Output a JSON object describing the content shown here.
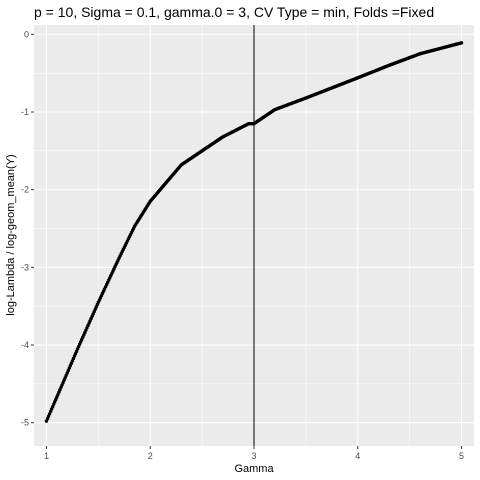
{
  "chart_data": {
    "type": "scatter",
    "title": "p = 10, Sigma = 0.1, gamma.0 = 3, CV Type = min, Folds =Fixed",
    "xlabel": "Gamma",
    "ylabel": "log-Lambda / log-geom_mean(Y)",
    "xlim": [
      0.88,
      5.12
    ],
    "ylim": [
      -5.3,
      0.12
    ],
    "x_ticks": [
      1,
      2,
      3,
      4,
      5
    ],
    "x_tick_labels": [
      "1",
      "2",
      "3",
      "4",
      "5"
    ],
    "y_ticks": [
      0,
      -1,
      -2,
      -3,
      -4,
      -5
    ],
    "y_tick_labels": [
      "0",
      "-1",
      "-2",
      "-3",
      "-4",
      "-5"
    ],
    "grid": true,
    "vline": 3,
    "point_color": "#000000",
    "panel_color": "#ebebeb",
    "grid_color": "#ffffff",
    "curve_knots": [
      [
        1.0,
        -4.98
      ],
      [
        1.3,
        -4.05
      ],
      [
        1.5,
        -3.45
      ],
      [
        1.7,
        -2.88
      ],
      [
        1.85,
        -2.47
      ],
      [
        2.0,
        -2.15
      ],
      [
        2.3,
        -1.68
      ],
      [
        2.5,
        -1.5
      ],
      [
        2.7,
        -1.32
      ],
      [
        2.95,
        -1.15
      ],
      [
        3.0,
        -1.15
      ],
      [
        3.2,
        -0.97
      ],
      [
        3.5,
        -0.82
      ],
      [
        4.0,
        -0.56
      ],
      [
        4.3,
        -0.4
      ],
      [
        4.6,
        -0.25
      ],
      [
        5.0,
        -0.11
      ]
    ],
    "x_step": 0.01
  }
}
